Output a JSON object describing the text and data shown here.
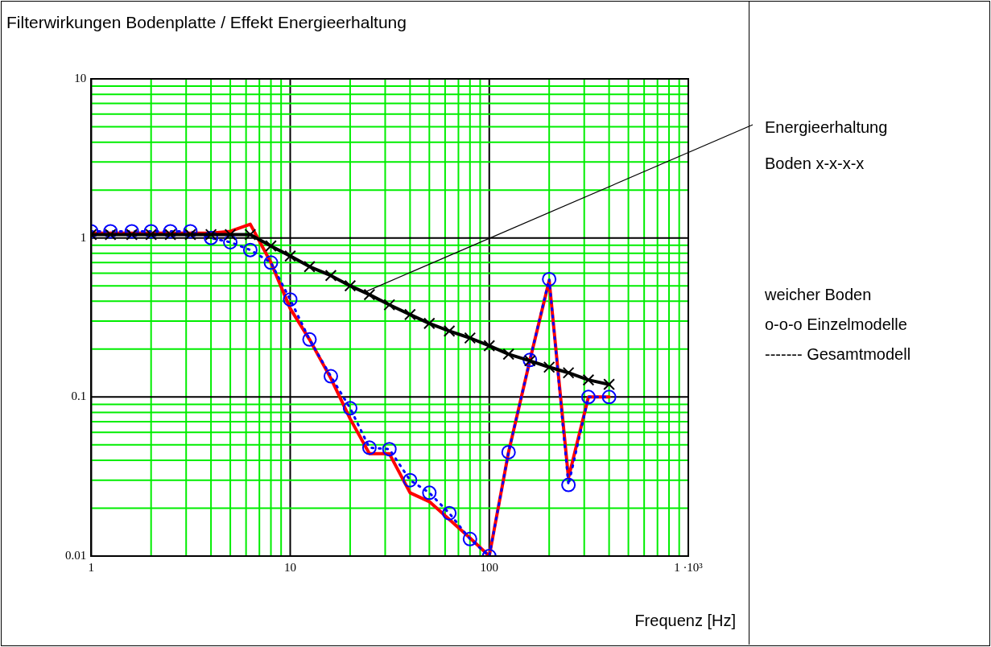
{
  "chart_data": {
    "type": "line",
    "title": "Filterwirkungen Bodenplatte / Effekt Energieerhaltung",
    "xlabel": "Frequenz [Hz]",
    "x": [
      1,
      1.25,
      1.6,
      2,
      2.5,
      3.15,
      4,
      5,
      6.3,
      8,
      10,
      12.5,
      16,
      20,
      25,
      31.5,
      40,
      50,
      63,
      80,
      100,
      125,
      160,
      200,
      250,
      315,
      400
    ],
    "series": [
      {
        "color": "#ff0000",
        "marker": "none",
        "line_style": "solid",
        "values": [
          1.07,
          1.07,
          1.07,
          1.07,
          1.07,
          1.07,
          1.07,
          1.1,
          1.22,
          0.7,
          0.36,
          0.23,
          0.131,
          0.073,
          0.044,
          0.044,
          0.025,
          0.022,
          0.017,
          0.013,
          0.01,
          0.045,
          0.17,
          0.54,
          0.031,
          0.1,
          0.1
        ]
      },
      {
        "color": "#0000ff",
        "marker": "circle",
        "line_style": "dotted",
        "values": [
          1.1,
          1.1,
          1.1,
          1.1,
          1.1,
          1.1,
          1.0,
          0.94,
          0.84,
          0.7,
          0.41,
          0.23,
          0.135,
          0.085,
          0.048,
          0.047,
          0.03,
          0.025,
          0.0186,
          0.0128,
          0.01,
          0.045,
          0.171,
          0.55,
          0.028,
          0.1,
          0.1
        ]
      },
      {
        "color": "#000000",
        "marker": "cross",
        "line_style": "solid",
        "values": [
          1.05,
          1.05,
          1.05,
          1.05,
          1.05,
          1.05,
          1.05,
          1.05,
          1.05,
          0.89,
          0.77,
          0.66,
          0.58,
          0.5,
          0.44,
          0.38,
          0.33,
          0.29,
          0.26,
          0.235,
          0.21,
          0.186,
          0.169,
          0.154,
          0.142,
          0.128,
          0.12
        ]
      }
    ],
    "log": "xy",
    "grid": true,
    "xlim": [
      1,
      1000
    ],
    "xticks": [
      1,
      {
        "value": 2,
        "label": null
      },
      {
        "value": 3,
        "label": null
      },
      {
        "value": 4,
        "label": null
      },
      {
        "value": 5,
        "label": null
      },
      {
        "value": 6,
        "label": null
      },
      {
        "value": 7,
        "label": null
      },
      {
        "value": 8,
        "label": null
      },
      {
        "value": 9,
        "label": null
      },
      10,
      {
        "value": 20,
        "label": null
      },
      {
        "value": 30,
        "label": null
      },
      {
        "value": 40,
        "label": null
      },
      {
        "value": 50,
        "label": null
      },
      {
        "value": 60,
        "label": null
      },
      {
        "value": 70,
        "label": null
      },
      {
        "value": 80,
        "label": null
      },
      {
        "value": 90,
        "label": null
      },
      100,
      {
        "value": 200,
        "label": null
      },
      {
        "value": 300,
        "label": null
      },
      {
        "value": 400,
        "label": null
      },
      {
        "value": 500,
        "label": null
      },
      {
        "value": 600,
        "label": null
      },
      {
        "value": 700,
        "label": null
      },
      {
        "value": 800,
        "label": null
      },
      {
        "value": 900,
        "label": null
      },
      {
        "value": 1000,
        "label": "1 ·10³"
      }
    ],
    "ylim": [
      0.01,
      10
    ],
    "yticks": [
      0.01,
      {
        "value": 0.02,
        "label": null
      },
      {
        "value": 0.03,
        "label": null
      },
      {
        "value": 0.04,
        "label": null
      },
      {
        "value": 0.05,
        "label": null
      },
      {
        "value": 0.06,
        "label": null
      },
      {
        "value": 0.07,
        "label": null
      },
      {
        "value": 0.08,
        "label": null
      },
      {
        "value": 0.09,
        "label": null
      },
      0.1,
      {
        "value": 0.2,
        "label": null
      },
      {
        "value": 0.3,
        "label": null
      },
      {
        "value": 0.4,
        "label": null
      },
      {
        "value": 0.5,
        "label": null
      },
      {
        "value": 0.6,
        "label": null
      },
      {
        "value": 0.7,
        "label": null
      },
      {
        "value": 0.8,
        "label": null
      },
      {
        "value": 0.9,
        "label": null
      },
      1,
      {
        "value": 2,
        "label": null
      },
      {
        "value": 3,
        "label": null
      },
      {
        "value": 4,
        "label": null
      },
      {
        "value": 5,
        "label": null
      },
      {
        "value": 6,
        "label": null
      },
      {
        "value": 7,
        "label": null
      },
      {
        "value": 8,
        "label": null
      },
      {
        "value": 9,
        "label": null
      },
      10
    ],
    "annotations": [
      {
        "text": "Energieerhaltung",
        "x": 24,
        "y": 0.46
      },
      "Boden x-x-x-x",
      "weicher Boden",
      "o-o-o Einzelmodelle",
      "------- Gesamtmodell"
    ]
  }
}
